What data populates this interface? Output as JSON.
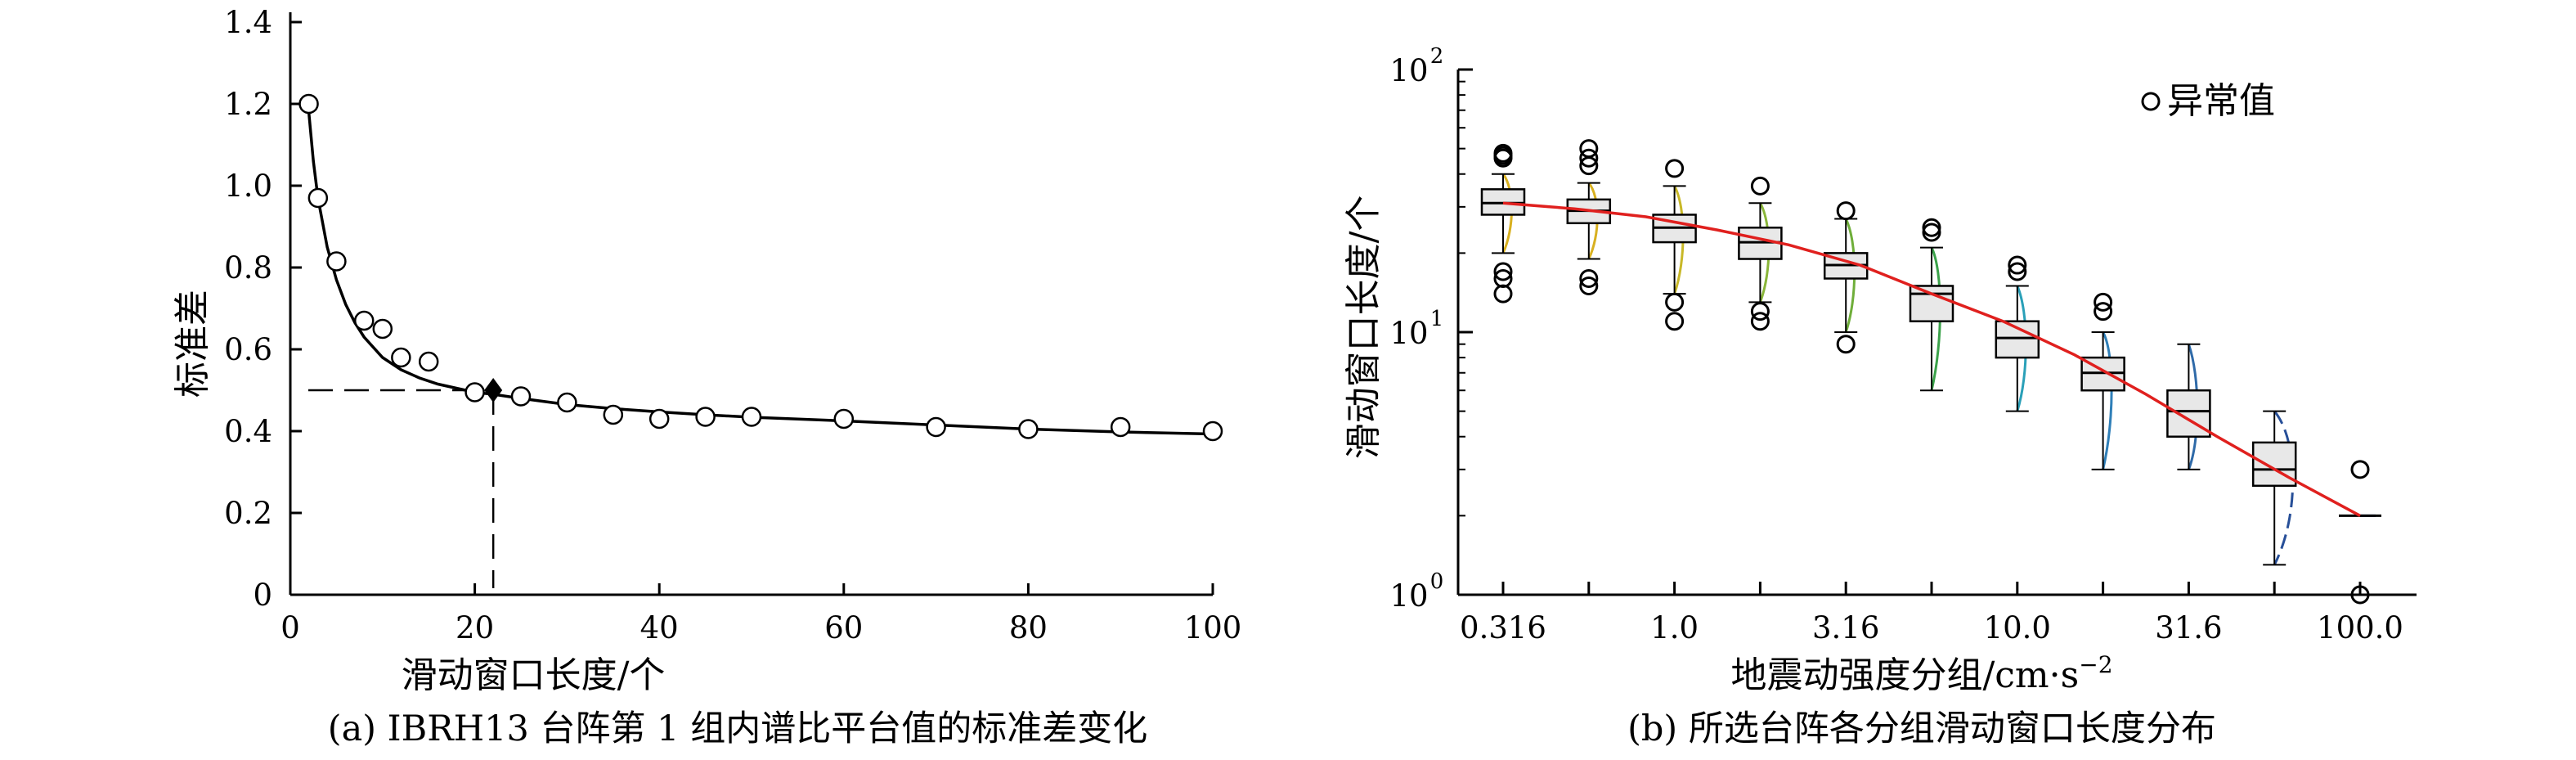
{
  "chart_data": [
    {
      "type": "scatter",
      "caption": "(a) IBRH13 台阵第 1 组内谱比平台值的标准差变化",
      "xlabel": "滑动窗口长度/个",
      "ylabel": "标准差",
      "xlim": [
        0,
        100
      ],
      "ylim": [
        0,
        1.4
      ],
      "xticks": [
        "0",
        "20",
        "40",
        "60",
        "80",
        "100"
      ],
      "yticks": [
        "0",
        "0.2",
        "0.4",
        "0.6",
        "0.8",
        "1.0",
        "1.2",
        "1.4"
      ],
      "points": {
        "x": [
          2,
          3,
          5,
          8,
          10,
          12,
          15,
          20,
          25,
          30,
          35,
          40,
          45,
          50,
          60,
          70,
          80,
          90,
          100
        ],
        "y": [
          1.2,
          0.97,
          0.815,
          0.67,
          0.65,
          0.58,
          0.57,
          0.495,
          0.485,
          0.47,
          0.44,
          0.43,
          0.435,
          0.435,
          0.43,
          0.41,
          0.405,
          0.41,
          0.4
        ]
      },
      "fit_curve": {
        "x": [
          2,
          2.5,
          3,
          4,
          5,
          6,
          7,
          8,
          10,
          12,
          14,
          16,
          18,
          20,
          22,
          25,
          30,
          35,
          40,
          45,
          50,
          60,
          70,
          80,
          90,
          100
        ],
        "y": [
          1.18,
          1.06,
          0.97,
          0.85,
          0.77,
          0.71,
          0.665,
          0.63,
          0.58,
          0.55,
          0.53,
          0.515,
          0.505,
          0.495,
          0.49,
          0.48,
          0.465,
          0.455,
          0.447,
          0.44,
          0.434,
          0.425,
          0.415,
          0.405,
          0.398,
          0.393
        ]
      },
      "marked_point": {
        "x": 22,
        "y": 0.5
      }
    },
    {
      "type": "box",
      "caption": "(b) 所选台阵各分组滑动窗口长度分布",
      "xlabel": "地震动强度分组/cm·s",
      "xlabel_sup": "−2",
      "ylabel": "滑动窗口长度/个",
      "yscale": "log",
      "ylim": [
        1,
        100
      ],
      "ytick_bases": [
        "10",
        "10",
        "10"
      ],
      "ytick_exps": [
        "0",
        "1",
        "2"
      ],
      "xticks": [
        "0.316",
        "1.0",
        "3.16",
        "10.0",
        "31.6",
        "100.0"
      ],
      "legend": {
        "label": "异常值",
        "position": "top-right"
      },
      "boxes": [
        {
          "median": 31,
          "q1": 28,
          "q3": 35,
          "wlo": 20,
          "whi": 40,
          "out": [
            47,
            48,
            46,
            17,
            16,
            14
          ]
        },
        {
          "median": 29,
          "q1": 26,
          "q3": 32,
          "wlo": 19,
          "whi": 37,
          "out": [
            50,
            46,
            43,
            16,
            15
          ]
        },
        {
          "median": 25,
          "q1": 22,
          "q3": 28,
          "wlo": 14,
          "whi": 36,
          "out": [
            42,
            13,
            11
          ]
        },
        {
          "median": 22,
          "q1": 19,
          "q3": 25,
          "wlo": 13,
          "whi": 31,
          "out": [
            36,
            12,
            11
          ]
        },
        {
          "median": 18,
          "q1": 16,
          "q3": 20,
          "wlo": 10,
          "whi": 27,
          "out": [
            29,
            9
          ]
        },
        {
          "median": 14,
          "q1": 11,
          "q3": 15,
          "wlo": 6,
          "whi": 21,
          "out": [
            25,
            24
          ]
        },
        {
          "median": 9.5,
          "q1": 8,
          "q3": 11,
          "wlo": 5,
          "whi": 15,
          "out": [
            18,
            17
          ]
        },
        {
          "median": 7,
          "q1": 6,
          "q3": 8,
          "wlo": 3,
          "whi": 10,
          "out": [
            13,
            12
          ]
        },
        {
          "median": 5,
          "q1": 4,
          "q3": 6,
          "wlo": 3,
          "whi": 9,
          "out": []
        },
        {
          "median": 3,
          "q1": 2.6,
          "q3": 3.8,
          "wlo": 1.3,
          "whi": 5,
          "out": []
        },
        {
          "median": 2,
          "q1": 2,
          "q3": 2,
          "wlo": 2,
          "whi": 2,
          "out": [
            3,
            1
          ]
        }
      ],
      "fit_curve": [
        31,
        29.5,
        27.5,
        24.5,
        21.5,
        18,
        14,
        11,
        8.2,
        5.8,
        4,
        2.8,
        2
      ],
      "colors": {
        "fit": "#e0201e",
        "box_fill": "#e8e8e8",
        "density": [
          "#d8b020",
          "#d8b020",
          "#c8b828",
          "#8ab63a",
          "#6fae3a",
          "#3ba24a",
          "#2aa0b8",
          "#2f7fb8",
          "#2f6aa8",
          "#274f98",
          "#1f3a8a"
        ]
      }
    }
  ]
}
